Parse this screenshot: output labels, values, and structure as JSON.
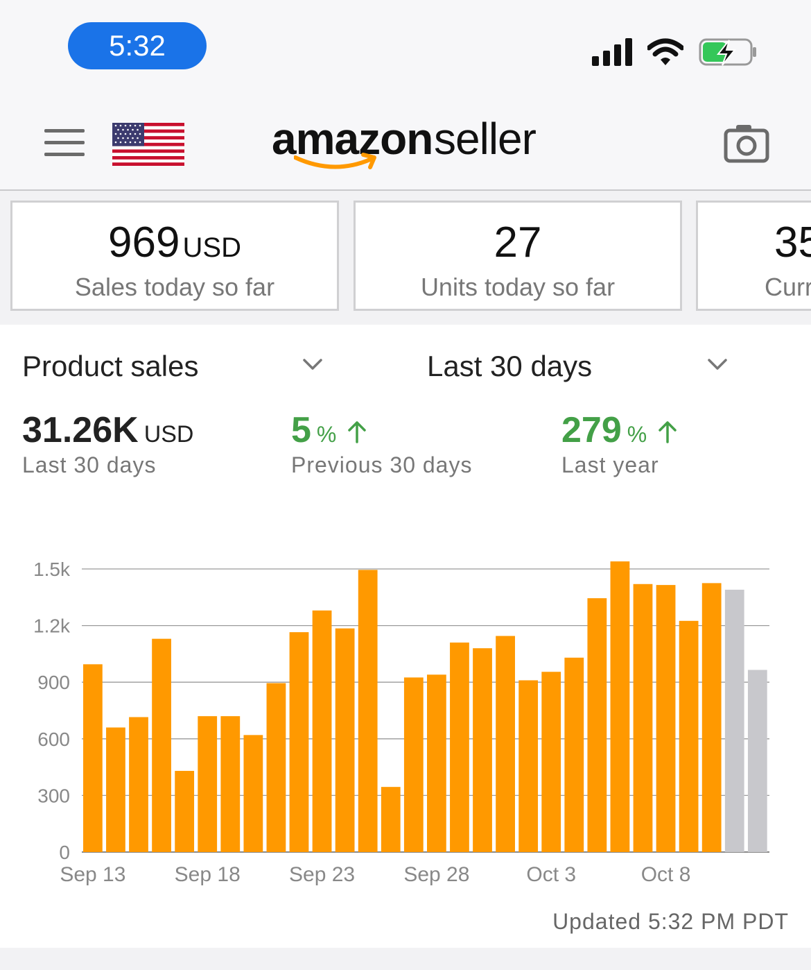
{
  "status_bar": {
    "time": "5:32"
  },
  "header": {
    "logo_brand": "amazon",
    "logo_product": "seller"
  },
  "cards": [
    {
      "value": "969",
      "unit": "USD",
      "label": "Sales today so far"
    },
    {
      "value": "27",
      "unit": "",
      "label": "Units today so far"
    },
    {
      "value": "35",
      "unit": "",
      "label": "Curr"
    }
  ],
  "controls": {
    "metric": "Product sales",
    "period": "Last 30 days"
  },
  "stats": [
    {
      "value": "31.26K",
      "unit": "USD",
      "label": "Last 30 days"
    },
    {
      "value": "5",
      "unit": "%",
      "label": "Previous 30 days",
      "trend": "up"
    },
    {
      "value": "279",
      "unit": "%",
      "label": "Last year",
      "trend": "up"
    }
  ],
  "colors": {
    "bar": "#ff9900",
    "bar_projected": "#c8c8cc",
    "positive": "#43a047",
    "pill": "#1a73e8"
  },
  "chart_data": {
    "type": "bar",
    "categories": [
      "Sep 13",
      "Sep 14",
      "Sep 15",
      "Sep 16",
      "Sep 17",
      "Sep 18",
      "Sep 19",
      "Sep 20",
      "Sep 21",
      "Sep 22",
      "Sep 23",
      "Sep 24",
      "Sep 25",
      "Sep 26",
      "Sep 27",
      "Sep 28",
      "Sep 29",
      "Sep 30",
      "Oct 1",
      "Oct 2",
      "Oct 3",
      "Oct 4",
      "Oct 5",
      "Oct 6",
      "Oct 7",
      "Oct 8",
      "Oct 9",
      "Oct 10",
      "Oct 11",
      "Oct 12"
    ],
    "values": [
      995,
      660,
      715,
      1130,
      430,
      720,
      720,
      620,
      895,
      1165,
      1280,
      1185,
      1495,
      345,
      925,
      940,
      1110,
      1080,
      1145,
      910,
      955,
      1030,
      1345,
      1540,
      1420,
      1415,
      1225,
      1425,
      1390,
      965
    ],
    "projected": [
      false,
      false,
      false,
      false,
      false,
      false,
      false,
      false,
      false,
      false,
      false,
      false,
      false,
      false,
      false,
      false,
      false,
      false,
      false,
      false,
      false,
      false,
      false,
      false,
      false,
      false,
      false,
      false,
      true,
      true
    ],
    "x_tick_labels": [
      "Sep 13",
      "Sep 18",
      "Sep 23",
      "Sep 28",
      "Oct 3",
      "Oct 8"
    ],
    "y_tick_labels": [
      "0",
      "300",
      "600",
      "900",
      "1.2k",
      "1.5k"
    ],
    "y_tick_values": [
      0,
      300,
      600,
      900,
      1200,
      1500
    ],
    "ylim": [
      0,
      1500
    ],
    "grid": true
  },
  "footer": {
    "updated": "Updated 5:32 PM PDT"
  }
}
